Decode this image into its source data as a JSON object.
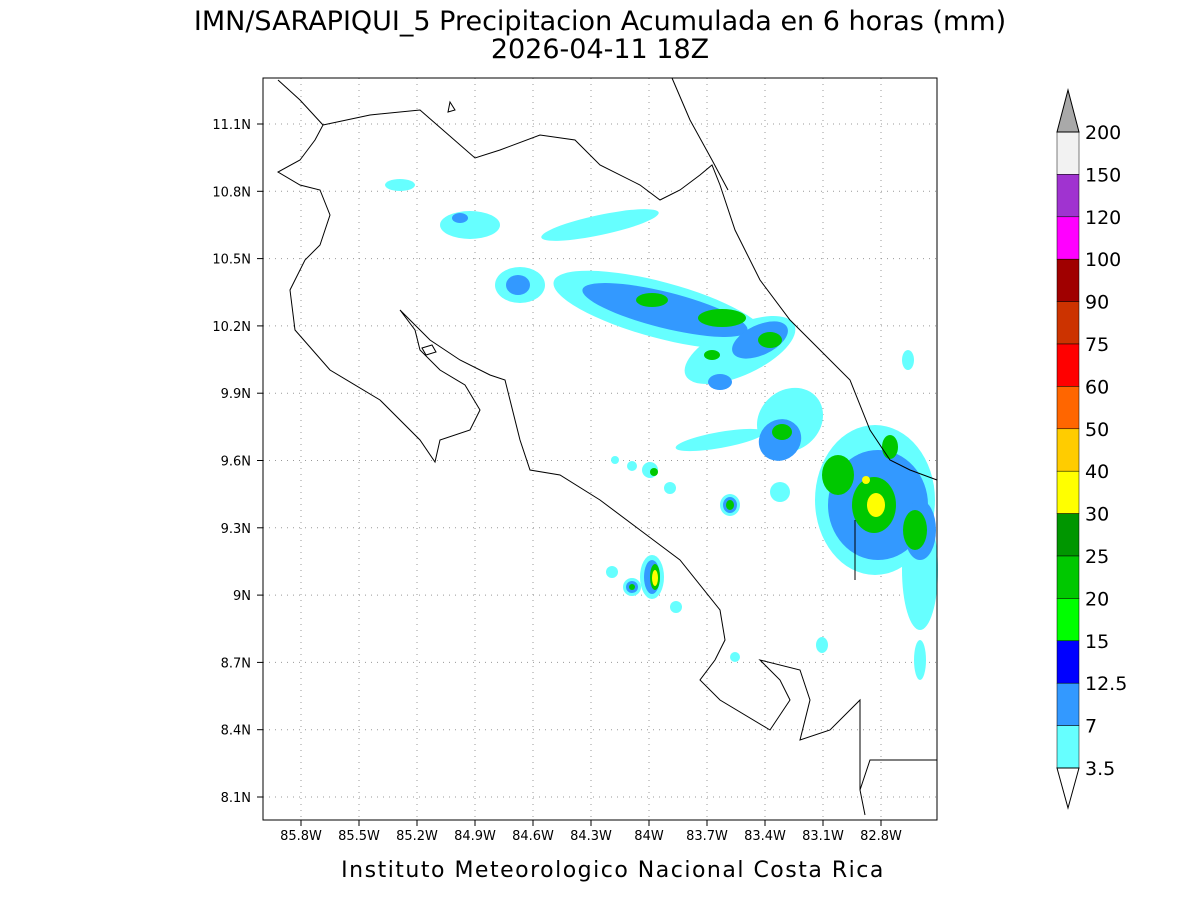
{
  "title": "IMN/SARAPIQUI_5 Precipitacion Acumulada en 6 horas (mm)",
  "subtitle": "2026-04-11 18Z",
  "footer": "Instituto Meteorologico Nacional Costa Rica",
  "lat_ticks": [
    "11.1N",
    "10.8N",
    "10.5N",
    "10.2N",
    "9.9N",
    "9.6N",
    "9.3N",
    "9N",
    "8.7N",
    "8.4N",
    "8.1N"
  ],
  "lon_ticks": [
    "85.8W",
    "85.5W",
    "85.2W",
    "84.9W",
    "84.6W",
    "84.3W",
    "84W",
    "83.7W",
    "83.4W",
    "83.1W",
    "82.8W"
  ],
  "colorbar": {
    "labels": [
      "200",
      "150",
      "120",
      "100",
      "90",
      "75",
      "60",
      "50",
      "40",
      "30",
      "25",
      "20",
      "15",
      "12.5",
      "7",
      "3.5"
    ],
    "colors": [
      "#f2f2f2",
      "#a033d0",
      "#ff00ff",
      "#a00000",
      "#cc3300",
      "#ff0000",
      "#ff6600",
      "#ffcc00",
      "#ffff00",
      "#009600",
      "#00c800",
      "#00ff00",
      "#0000ff",
      "#3399ff",
      "#66ffff"
    ],
    "over_color": "#a9a9a9",
    "under_color": "#ffffff"
  }
}
